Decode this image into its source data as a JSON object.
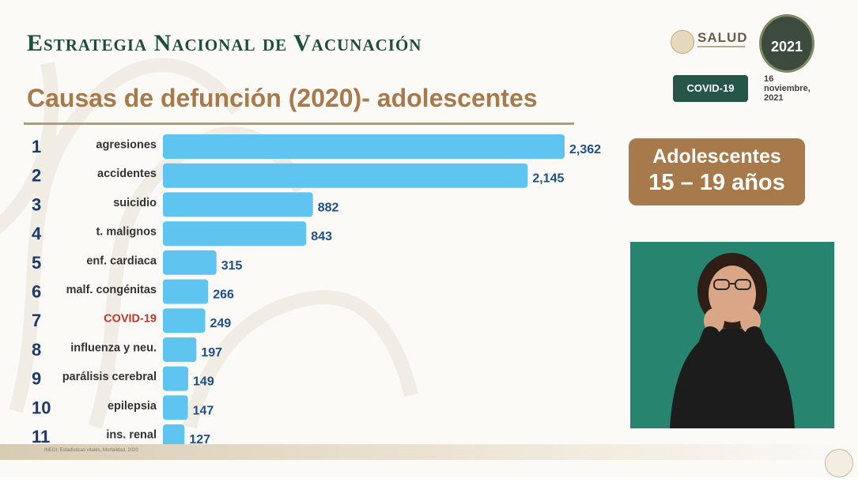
{
  "header": {
    "title": "Estrategia Nacional de Vacunación",
    "subtitle": "Causas de defunción (2020)- adolescentes",
    "salud_label": "SALUD",
    "badge_year": "2021",
    "covid_badge": "COVID-19",
    "date_line1": "16",
    "date_line2": "noviembre,",
    "date_line3": "2021"
  },
  "side_box": {
    "line1": "Adolescentes",
    "line2": "15 – 19 años"
  },
  "source_note": "INEGI, Estadísticas vitales, Mortalidad, 2020",
  "colors": {
    "bar": "#5fc4ef",
    "value_text": "#1f4f86",
    "rank_text": "#1e3a6a",
    "highlight_label": "#c0392b",
    "title_green": "#1e4d3c",
    "subtitle_gold": "#a8794a",
    "interpreter_bg": "#27846f"
  },
  "chart_data": {
    "type": "bar",
    "orientation": "horizontal",
    "title": "Causas de defunción (2020)- adolescentes",
    "ranks": [
      "1",
      "2",
      "3",
      "4",
      "5",
      "6",
      "7",
      "8",
      "9",
      "10",
      "11"
    ],
    "categories": [
      "agresiones",
      "accidentes",
      "suicidio",
      "t. malignos",
      "enf. cardiaca",
      "malf. congénitas",
      "COVID-19",
      "influenza y neu.",
      "parálisis cerebral",
      "epilepsia",
      "ins. renal"
    ],
    "values": [
      2362,
      2145,
      882,
      843,
      315,
      266,
      249,
      197,
      149,
      147,
      127
    ],
    "value_labels": [
      "2,362",
      "2,145",
      "882",
      "843",
      "315",
      "266",
      "249",
      "197",
      "149",
      "147",
      "127"
    ],
    "highlight_category": "COVID-19",
    "xlim": [
      0,
      2362
    ],
    "grid": false,
    "legend": "none"
  }
}
